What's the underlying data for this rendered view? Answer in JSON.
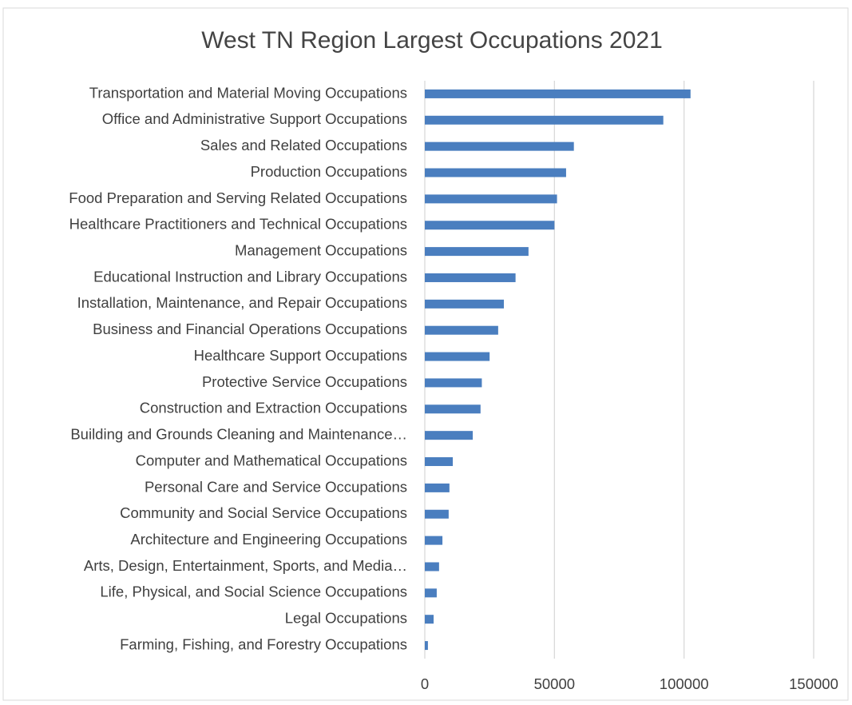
{
  "chart_data": {
    "type": "bar",
    "orientation": "horizontal",
    "title": "West TN Region Largest Occupations 2021",
    "categories": [
      "Transportation and Material Moving Occupations",
      "Office and Administrative Support Occupations",
      "Sales and Related Occupations",
      "Production Occupations",
      "Food Preparation and Serving Related Occupations",
      "Healthcare Practitioners and Technical Occupations",
      "Management Occupations",
      "Educational Instruction and Library Occupations",
      "Installation, Maintenance, and Repair Occupations",
      "Business and Financial Operations Occupations",
      "Healthcare Support Occupations",
      "Protective Service Occupations",
      "Construction and Extraction Occupations",
      "Building and Grounds Cleaning and Maintenance…",
      "Computer and Mathematical Occupations",
      "Personal Care and Service Occupations",
      "Community and Social Service Occupations",
      "Architecture and Engineering Occupations",
      "Arts, Design, Entertainment, Sports, and Media…",
      "Life, Physical, and Social Science Occupations",
      "Legal Occupations",
      "Farming, Fishing, and Forestry Occupations"
    ],
    "values": [
      102500,
      92000,
      57500,
      54500,
      51000,
      50000,
      40000,
      35000,
      30500,
      28300,
      25000,
      22000,
      21500,
      18500,
      10800,
      9500,
      9200,
      6800,
      5500,
      4600,
      3400,
      1200
    ],
    "color": "#4a7ebf",
    "xlim": [
      0,
      150000
    ],
    "xticks": [
      0,
      50000,
      100000,
      150000
    ],
    "grid": true
  }
}
